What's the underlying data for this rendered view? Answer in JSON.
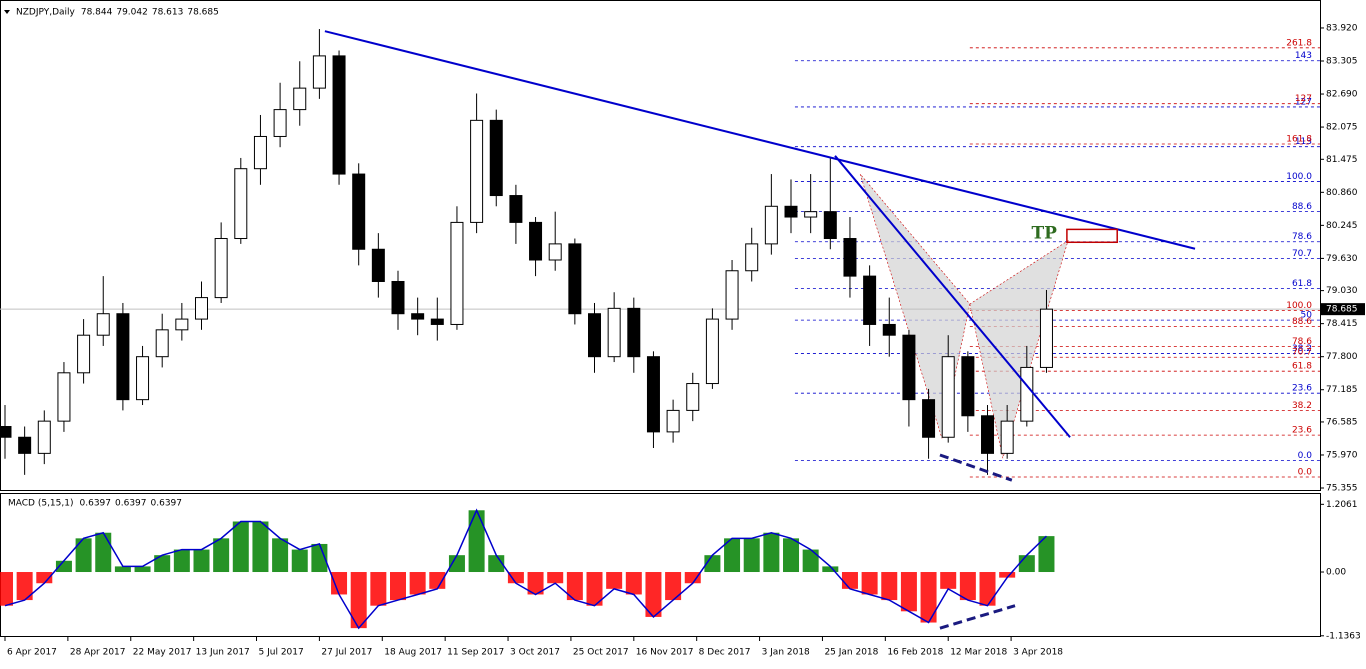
{
  "chart_data": [
    {
      "type": "candlestick",
      "title": "NZDJPY,Daily",
      "header_values": [
        78.844,
        79.042,
        78.613,
        78.685
      ],
      "x": [
        0,
        5,
        10,
        15,
        20,
        25,
        30,
        35,
        40,
        45,
        50,
        55,
        60,
        65,
        70,
        75,
        80,
        85,
        90,
        95,
        100,
        105,
        110,
        115,
        120,
        125,
        130,
        135,
        140,
        145,
        150,
        155,
        160,
        165,
        170,
        175,
        180,
        185,
        190,
        195,
        200,
        205,
        210,
        215,
        220,
        225,
        230,
        235,
        240,
        245,
        250,
        255,
        260,
        265
      ],
      "open": [
        76.5,
        76.3,
        76.0,
        76.6,
        77.5,
        78.2,
        78.6,
        77.0,
        77.8,
        78.3,
        78.5,
        78.9,
        80.0,
        81.3,
        81.9,
        82.4,
        82.8,
        83.4,
        81.2,
        79.8,
        79.2,
        78.6,
        78.5,
        78.4,
        80.3,
        82.2,
        80.8,
        80.3,
        79.6,
        79.9,
        78.6,
        77.8,
        78.7,
        77.8,
        76.4,
        76.8,
        77.3,
        78.5,
        79.4,
        79.9,
        80.6,
        80.4,
        80.5,
        80.0,
        79.3,
        78.4,
        78.2,
        77.0,
        76.3,
        77.8,
        76.7,
        76.0,
        76.6,
        77.6
      ],
      "high": [
        76.9,
        76.5,
        76.8,
        77.7,
        78.5,
        79.3,
        78.8,
        78.0,
        78.6,
        78.8,
        79.2,
        80.3,
        81.5,
        82.3,
        82.9,
        83.3,
        83.9,
        83.5,
        81.4,
        80.1,
        79.4,
        78.9,
        78.9,
        80.6,
        82.7,
        82.4,
        81.0,
        80.4,
        80.5,
        80.0,
        78.8,
        79.0,
        78.9,
        77.9,
        77.0,
        77.5,
        78.7,
        79.6,
        80.2,
        81.2,
        81.1,
        81.2,
        81.5,
        80.4,
        79.5,
        78.9,
        78.3,
        77.2,
        78.2,
        77.9,
        76.9,
        76.9,
        78.0,
        79.042
      ],
      "low": [
        75.9,
        75.6,
        75.8,
        76.4,
        77.3,
        78.0,
        76.8,
        76.9,
        77.6,
        78.1,
        78.3,
        78.8,
        79.9,
        81.0,
        81.7,
        82.1,
        82.6,
        81.0,
        79.5,
        78.9,
        78.3,
        78.2,
        78.1,
        78.3,
        80.1,
        80.6,
        79.9,
        79.3,
        79.4,
        78.4,
        77.5,
        77.7,
        77.5,
        76.1,
        76.2,
        76.6,
        77.2,
        78.3,
        79.2,
        79.7,
        80.1,
        80.1,
        79.8,
        78.9,
        78.0,
        77.8,
        76.5,
        75.9,
        76.2,
        76.4,
        75.6,
        75.9,
        76.5,
        77.5
      ],
      "close": [
        76.3,
        76.0,
        76.6,
        77.5,
        78.2,
        78.6,
        77.0,
        77.8,
        78.3,
        78.5,
        78.9,
        80.0,
        81.3,
        81.9,
        82.4,
        82.8,
        83.4,
        81.2,
        79.8,
        79.2,
        78.6,
        78.5,
        78.4,
        80.3,
        82.2,
        80.8,
        80.3,
        79.6,
        79.9,
        78.6,
        77.8,
        78.7,
        77.8,
        76.4,
        76.8,
        77.3,
        78.5,
        79.4,
        79.9,
        80.6,
        80.4,
        80.5,
        80.0,
        79.3,
        78.4,
        78.2,
        77.0,
        76.3,
        77.8,
        76.7,
        76.0,
        76.6,
        77.6,
        78.685
      ],
      "up_color": "#ffffff",
      "down_color": "#000000",
      "xlim": [
        -1.27,
        334.6
      ],
      "ylim": [
        75.318,
        84.422
      ],
      "yticks": [
        {
          "value": 83.92,
          "label": "83.920"
        },
        {
          "value": 83.305,
          "label": "83.305"
        },
        {
          "value": 82.69,
          "label": "82.690"
        },
        {
          "value": 82.075,
          "label": "82.075"
        },
        81.475,
        {
          "value": 80.86,
          "label": "80.860"
        },
        80.245,
        {
          "value": 79.63,
          "label": "79.630"
        },
        {
          "value": 79.03,
          "label": "79.030"
        },
        78.415,
        {
          "value": 77.8,
          "label": "77.800"
        },
        77.185,
        76.585,
        {
          "value": 75.97,
          "label": "75.970"
        },
        75.355
      ],
      "xticks": [
        {
          "value": 0,
          "label": "6 Apr 2017"
        },
        {
          "value": 16,
          "label": "28 Apr 2017"
        },
        {
          "value": 32,
          "label": "22 May 2017"
        },
        {
          "value": 48,
          "label": "13 Jun 2017"
        },
        {
          "value": 64,
          "label": "5 Jul 2017"
        },
        {
          "value": 80,
          "label": "27 Jul 2017"
        },
        {
          "value": 96,
          "label": "18 Aug 2017"
        },
        {
          "value": 112,
          "label": "11 Sep 2017"
        },
        {
          "value": 128,
          "label": "3 Oct 2017"
        },
        {
          "value": 144,
          "label": "25 Oct 2017"
        },
        {
          "value": 160,
          "label": "16 Nov 2017"
        },
        {
          "value": 176,
          "label": "8 Dec 2017"
        },
        {
          "value": 192,
          "label": "3 Jan 2018"
        },
        {
          "value": 208,
          "label": "25 Jan 2018"
        },
        {
          "value": 224,
          "label": "16 Feb 2018"
        },
        {
          "value": 240,
          "label": "12 Mar 2018"
        },
        {
          "value": 256,
          "label": "3 Apr 2018"
        }
      ],
      "last_price": {
        "value": 78.685,
        "label": "78.685"
      },
      "trendlines": [
        {
          "x": [
            81.4,
            302.8
          ],
          "y": [
            83.86,
            79.81
          ],
          "color": "#0000cc",
          "dashed": false
        },
        {
          "x": [
            211.2,
            271
          ],
          "y": [
            81.54,
            76.3
          ],
          "color": "#0000cc",
          "dashed": false
        },
        {
          "x": [
            237.9,
            256.2
          ],
          "y": [
            75.97,
            75.5
          ],
          "color": "#1a1a80",
          "dashed": true
        }
      ],
      "pattern": {
        "x": [
          217.6,
          238.4,
          245.5,
          253.9,
          270.5
        ],
        "y": [
          81.2,
          76.28,
          78.78,
          75.91,
          79.96
        ],
        "color": "#d3d3d3"
      },
      "target": {
        "label": "TP",
        "x": [
          270.2,
          283
        ],
        "y": [
          80.17,
          79.93
        ],
        "color": "#c00000",
        "label_color": "#2e6b1f"
      },
      "fib_sets": [
        {
          "color": "#0000cc",
          "x_start": 201,
          "levels": [
            {
              "label": "143",
              "value": 83.31
            },
            {
              "label": "127",
              "value": 82.45
            },
            {
              "label": "113",
              "value": 81.71
            },
            {
              "label": "100.0",
              "value": 81.06
            },
            {
              "label": "88.6",
              "value": 80.5
            },
            {
              "label": "78.6",
              "value": 79.94
            },
            {
              "label": "70.7",
              "value": 79.63
            },
            {
              "label": "61.8",
              "value": 79.07
            },
            {
              "label": "50",
              "value": 78.48
            },
            {
              "label": "38.2",
              "value": 77.86
            },
            {
              "label": "23.6",
              "value": 77.12
            },
            {
              "label": "0.0",
              "value": 75.87
            }
          ]
        },
        {
          "color": "#cc0000",
          "x_start": 245.5,
          "levels": [
            {
              "label": "261.8",
              "value": 83.55
            },
            {
              "label": "127",
              "value": 82.51
            },
            {
              "label": "161.8",
              "value": 81.76
            },
            {
              "label": "100.0",
              "value": 78.66
            },
            {
              "label": "88.6",
              "value": 78.36
            },
            {
              "label": "78.6",
              "value": 77.99
            },
            {
              "label": "70.7",
              "value": 77.79
            },
            {
              "label": "61.8",
              "value": 77.53
            },
            {
              "label": "38.2",
              "value": 76.8
            },
            {
              "label": "23.6",
              "value": 76.34
            },
            {
              "label": "0.0",
              "value": 75.56
            }
          ]
        }
      ]
    },
    {
      "type": "macd",
      "title": "MACD (5,15,1)",
      "header_values": [
        0.6397,
        0.6397,
        0.6397
      ],
      "x": [
        0,
        5,
        10,
        15,
        20,
        25,
        30,
        35,
        40,
        45,
        50,
        55,
        60,
        65,
        70,
        75,
        80,
        85,
        90,
        95,
        100,
        105,
        110,
        115,
        120,
        125,
        130,
        135,
        140,
        145,
        150,
        155,
        160,
        165,
        170,
        175,
        180,
        185,
        190,
        195,
        200,
        205,
        210,
        215,
        220,
        225,
        230,
        235,
        240,
        245,
        250,
        255,
        260,
        265
      ],
      "values": [
        -0.6,
        -0.5,
        -0.2,
        0.2,
        0.6,
        0.7,
        0.1,
        0.1,
        0.3,
        0.4,
        0.4,
        0.6,
        0.9,
        0.9,
        0.6,
        0.4,
        0.5,
        -0.4,
        -1.0,
        -0.6,
        -0.5,
        -0.4,
        -0.3,
        0.3,
        1.1,
        0.3,
        -0.2,
        -0.4,
        -0.2,
        -0.5,
        -0.6,
        -0.3,
        -0.4,
        -0.8,
        -0.5,
        -0.2,
        0.3,
        0.6,
        0.6,
        0.7,
        0.6,
        0.4,
        0.1,
        -0.3,
        -0.4,
        -0.5,
        -0.7,
        -0.9,
        -0.3,
        -0.5,
        -0.6,
        -0.1,
        0.3,
        0.6397
      ],
      "positive_color": "#008000",
      "negative_color": "#ff0000",
      "line_color": "#0000cc",
      "xlim": [
        -1.27,
        334.6
      ],
      "ylim": [
        -1.14,
        1.39
      ],
      "yticks": [
        1.2061,
        {
          "value": 0,
          "label": "0.00"
        },
        -1.1363
      ],
      "divergence": {
        "x": [
          237.9,
          257
        ],
        "y": [
          -1.0,
          -0.6
        ],
        "color": "#1a1a80"
      }
    }
  ]
}
